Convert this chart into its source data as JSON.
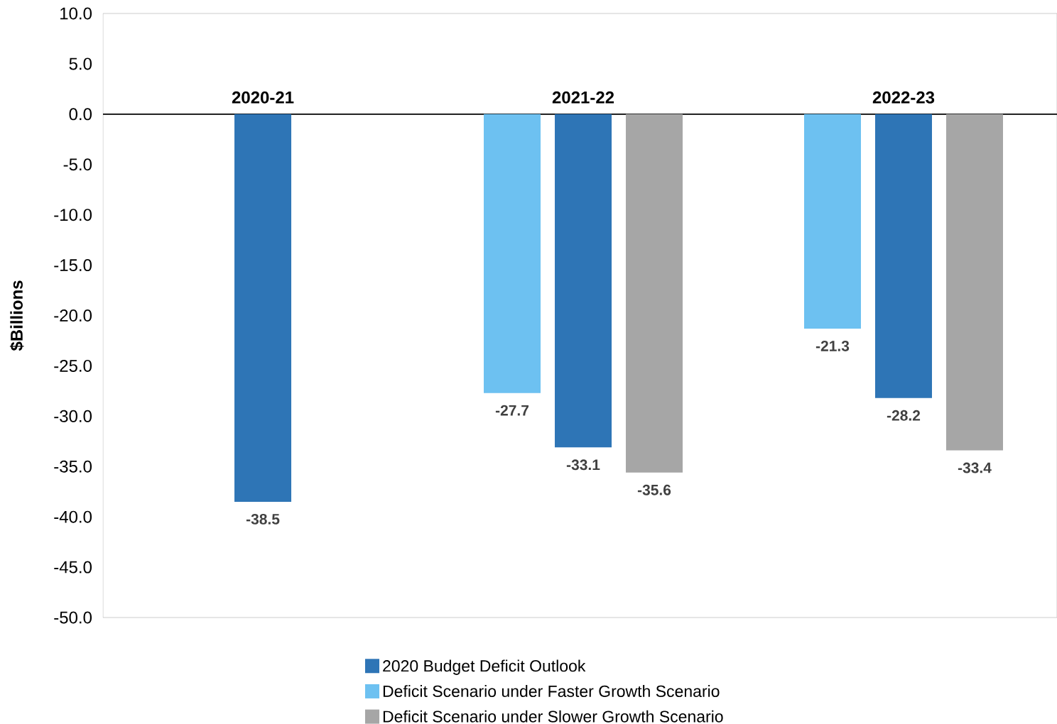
{
  "chart_data": {
    "type": "bar",
    "ylabel": "$Billions",
    "categories": [
      "2020-21",
      "2021-22",
      "2022-23"
    ],
    "series": [
      {
        "name": "2020 Budget Deficit Outlook",
        "color": "#2e75b6",
        "values": [
          -38.5,
          -33.1,
          -28.2
        ],
        "value_labels": [
          "-38.5",
          "-33.1",
          "-28.2"
        ]
      },
      {
        "name": "Deficit Scenario under Faster Growth Scenario",
        "color": "#6dc1f1",
        "values": [
          null,
          -27.7,
          -21.3
        ],
        "value_labels": [
          null,
          "-27.7",
          "-21.3"
        ]
      },
      {
        "name": "Deficit Scenario under Slower Growth Scenario",
        "color": "#a6a6a6",
        "values": [
          null,
          -35.6,
          -33.4
        ],
        "value_labels": [
          null,
          "-35.6",
          "-33.4"
        ]
      }
    ],
    "ylim": [
      -50,
      10
    ],
    "yticks": [
      {
        "value": 10,
        "label": "10.0"
      },
      {
        "value": 5,
        "label": "5.0"
      },
      {
        "value": 0,
        "label": "0.0"
      },
      {
        "value": -5,
        "label": "-5.0"
      },
      {
        "value": -10,
        "label": "-10.0"
      },
      {
        "value": -15,
        "label": "-15.0"
      },
      {
        "value": -20,
        "label": "-20.0"
      },
      {
        "value": -25,
        "label": "-25.0"
      },
      {
        "value": -30,
        "label": "-30.0"
      },
      {
        "value": -35,
        "label": "-35.0"
      },
      {
        "value": -40,
        "label": "-40.0"
      },
      {
        "value": -45,
        "label": "-45.0"
      },
      {
        "value": -50,
        "label": "-50.0"
      }
    ],
    "legend": "bottom",
    "grid": false
  }
}
